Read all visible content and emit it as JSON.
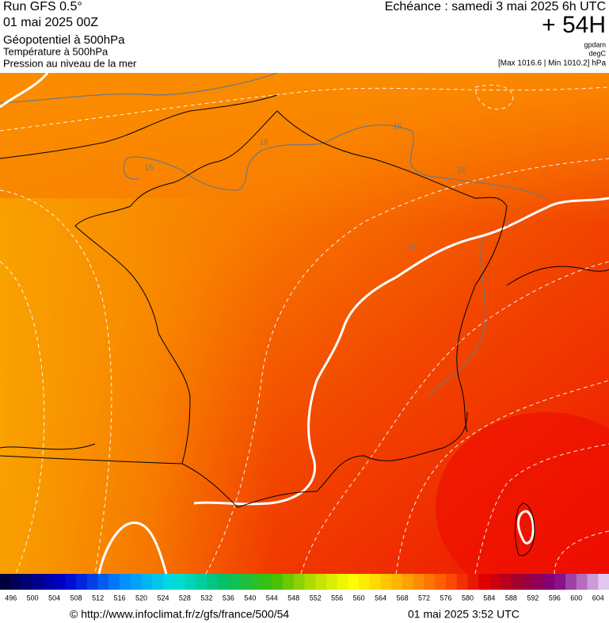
{
  "header": {
    "run": "Run GFS 0.5°",
    "run_date": "01 mai 2025 00Z",
    "field_1": "Géopotentiel à 500hPa",
    "field_2": "Température à 500hPa",
    "field_3": "Pression au niveau de la mer",
    "valid_time": "Echéance : samedi 3 mai 2025 6h UTC",
    "lead": "+ 54H",
    "unit_1": "gpdam",
    "unit_2": "degC",
    "pressure_range": "[Max 1016.6 | Min 1010.2] hPa"
  },
  "map": {
    "contour_labels": [
      "16",
      "16",
      "16",
      "16",
      "16",
      "6"
    ]
  },
  "colorbar": {
    "labels": [
      496,
      500,
      504,
      508,
      512,
      516,
      520,
      524,
      528,
      532,
      536,
      540,
      544,
      548,
      552,
      556,
      560,
      564,
      568,
      572,
      576,
      580,
      584,
      588,
      592,
      596,
      600,
      604
    ]
  },
  "footer": {
    "source": "© http://www.infoclimat.fr/z/gfs/france/500/54",
    "generated": "01 mai 2025  3:52 UTC"
  }
}
